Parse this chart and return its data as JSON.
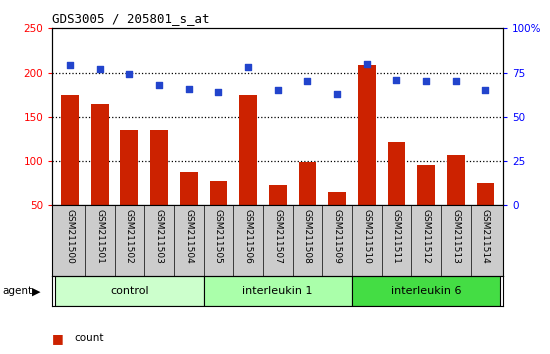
{
  "title": "GDS3005 / 205801_s_at",
  "categories": [
    "GSM211500",
    "GSM211501",
    "GSM211502",
    "GSM211503",
    "GSM211504",
    "GSM211505",
    "GSM211506",
    "GSM211507",
    "GSM211508",
    "GSM211509",
    "GSM211510",
    "GSM211511",
    "GSM211512",
    "GSM211513",
    "GSM211514"
  ],
  "counts": [
    175,
    165,
    135,
    135,
    88,
    77,
    175,
    73,
    99,
    65,
    208,
    122,
    95,
    107,
    75
  ],
  "percentiles": [
    79,
    77,
    74,
    68,
    66,
    64,
    78,
    65,
    70,
    63,
    80,
    71,
    70,
    70,
    65
  ],
  "groups": [
    {
      "label": "control",
      "start": 0,
      "end": 4,
      "color": "#ccffcc"
    },
    {
      "label": "interleukin 1",
      "start": 5,
      "end": 9,
      "color": "#aaffaa"
    },
    {
      "label": "interleukin 6",
      "start": 10,
      "end": 14,
      "color": "#44dd44"
    }
  ],
  "bar_color": "#cc2200",
  "dot_color": "#2244cc",
  "ylim_left": [
    50,
    250
  ],
  "ylim_right": [
    0,
    100
  ],
  "yticks_left": [
    50,
    100,
    150,
    200,
    250
  ],
  "yticks_right": [
    0,
    25,
    50,
    75,
    100
  ],
  "yticklabels_right": [
    "0",
    "25",
    "50",
    "75",
    "100%"
  ],
  "grid_values": [
    100,
    150,
    200
  ],
  "tick_area_color": "#cccccc",
  "legend_count_color": "#cc2200",
  "legend_pct_color": "#2244cc"
}
